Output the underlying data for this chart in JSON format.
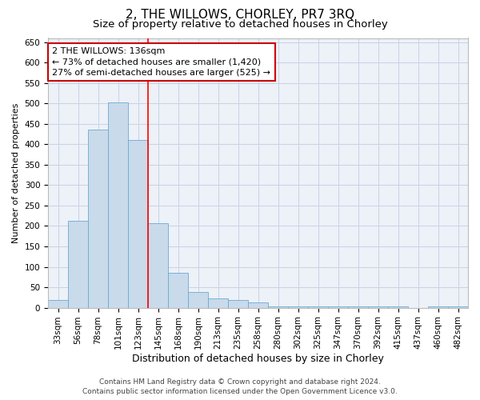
{
  "title1": "2, THE WILLOWS, CHORLEY, PR7 3RQ",
  "title2": "Size of property relative to detached houses in Chorley",
  "xlabel": "Distribution of detached houses by size in Chorley",
  "ylabel": "Number of detached properties",
  "bin_labels": [
    "33sqm",
    "56sqm",
    "78sqm",
    "101sqm",
    "123sqm",
    "145sqm",
    "168sqm",
    "190sqm",
    "213sqm",
    "235sqm",
    "258sqm",
    "280sqm",
    "302sqm",
    "325sqm",
    "347sqm",
    "370sqm",
    "392sqm",
    "415sqm",
    "437sqm",
    "460sqm",
    "482sqm"
  ],
  "bar_heights": [
    18,
    212,
    436,
    503,
    410,
    207,
    86,
    38,
    22,
    18,
    12,
    4,
    4,
    4,
    4,
    4,
    4,
    4,
    0,
    4,
    4
  ],
  "bar_color": "#c9daea",
  "bar_edge_color": "#6aaad4",
  "grid_color": "#c8d4e4",
  "bg_color": "#edf1f8",
  "red_line_x": 4.5,
  "annotation_line1": "2 THE WILLOWS: 136sqm",
  "annotation_line2": "← 73% of detached houses are smaller (1,420)",
  "annotation_line3": "27% of semi-detached houses are larger (525) →",
  "annotation_box_color": "#ffffff",
  "annotation_border_color": "#cc0000",
  "ylim": [
    0,
    660
  ],
  "yticks": [
    0,
    50,
    100,
    150,
    200,
    250,
    300,
    350,
    400,
    450,
    500,
    550,
    600,
    650
  ],
  "footer1": "Contains HM Land Registry data © Crown copyright and database right 2024.",
  "footer2": "Contains public sector information licensed under the Open Government Licence v3.0.",
  "title1_fontsize": 11,
  "title2_fontsize": 9.5,
  "xlabel_fontsize": 9,
  "ylabel_fontsize": 8,
  "tick_fontsize": 7.5,
  "annotation_fontsize": 8,
  "footer_fontsize": 6.5
}
